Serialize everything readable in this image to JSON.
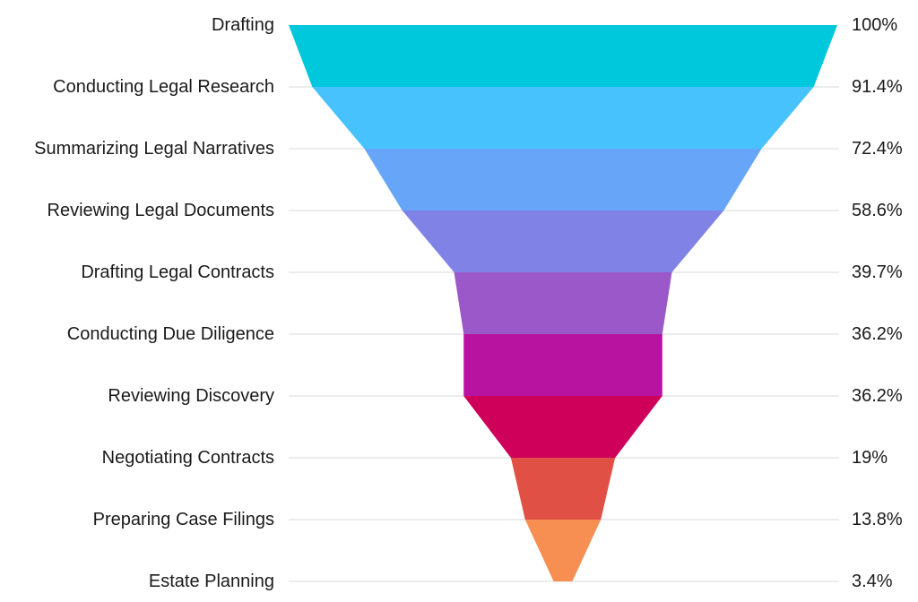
{
  "chart_data": {
    "type": "funnel",
    "categories": [
      "Drafting",
      "Conducting Legal Research",
      "Summarizing Legal Narratives",
      "Reviewing Legal Documents",
      "Drafting Legal Contracts",
      "Conducting Due Diligence",
      "Reviewing Discovery",
      "Negotiating Contracts",
      "Preparing Case Filings",
      "Estate Planning"
    ],
    "values": [
      100,
      91.4,
      72.4,
      58.6,
      39.7,
      36.2,
      36.2,
      19,
      13.8,
      3.4
    ],
    "value_labels": [
      "100%",
      "91.4%",
      "72.4%",
      "58.6%",
      "39.7%",
      "36.2%",
      "36.2%",
      "19%",
      "13.8%",
      "3.4%"
    ],
    "colors": [
      "#00c8dc",
      "#48c2fd",
      "#66a5f8",
      "#8082e6",
      "#9b58c9",
      "#b713a0",
      "#cf005a",
      "#e05045",
      "#f78e52",
      "#f78e52"
    ],
    "grid": true
  }
}
